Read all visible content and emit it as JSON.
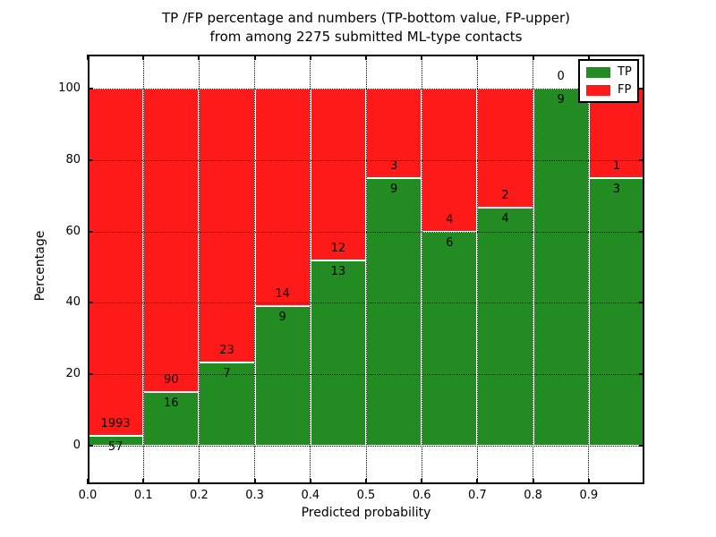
{
  "figure": {
    "title_line1": "TP /FP percentage and numbers (TP-bottom value, FP-upper)",
    "title_line2": "from among 2275 submitted ML-type contacts"
  },
  "chart_data": {
    "type": "bar",
    "subtype": "stacked-percentage",
    "title": "TP /FP percentage and numbers (TP-bottom value, FP-upper) from among 2275 submitted ML-type contacts",
    "xlabel": "Predicted probability",
    "ylabel": "Percentage",
    "total_contacts": 2275,
    "x_tick_labels": [
      "0.0",
      "0.1",
      "0.2",
      "0.3",
      "0.4",
      "0.5",
      "0.6",
      "0.7",
      "0.8",
      "0.9"
    ],
    "y_ticks": [
      0,
      20,
      40,
      60,
      80,
      100
    ],
    "y_tick_labels": [
      "0",
      "20",
      "40",
      "60",
      "80",
      "100"
    ],
    "xlim": [
      0.0,
      1.0
    ],
    "ylim": [
      -10.8,
      109.8
    ],
    "grid": "dotted-both-axes",
    "annotation_convention": "TP count below segment boundary, FP count above it",
    "legend": {
      "position": "upper-right",
      "entries": [
        {
          "label": "TP",
          "color": "#228b22"
        },
        {
          "label": "FP",
          "color": "#ff1a1a"
        }
      ]
    },
    "bins": [
      {
        "x_start": 0.0,
        "x_end": 0.1,
        "tp": 57,
        "fp": 1993,
        "tp_pct": 2.78
      },
      {
        "x_start": 0.1,
        "x_end": 0.2,
        "tp": 16,
        "fp": 90,
        "tp_pct": 15.09
      },
      {
        "x_start": 0.2,
        "x_end": 0.3,
        "tp": 7,
        "fp": 23,
        "tp_pct": 23.33
      },
      {
        "x_start": 0.3,
        "x_end": 0.4,
        "tp": 9,
        "fp": 14,
        "tp_pct": 39.13
      },
      {
        "x_start": 0.4,
        "x_end": 0.5,
        "tp": 13,
        "fp": 12,
        "tp_pct": 52.0
      },
      {
        "x_start": 0.5,
        "x_end": 0.6,
        "tp": 9,
        "fp": 3,
        "tp_pct": 75.0
      },
      {
        "x_start": 0.6,
        "x_end": 0.7,
        "tp": 6,
        "fp": 4,
        "tp_pct": 60.0
      },
      {
        "x_start": 0.7,
        "x_end": 0.8,
        "tp": 4,
        "fp": 2,
        "tp_pct": 66.67
      },
      {
        "x_start": 0.8,
        "x_end": 0.9,
        "tp": 9,
        "fp": 0,
        "tp_pct": 100.0
      },
      {
        "x_start": 0.9,
        "x_end": 1.0,
        "tp": 3,
        "fp": 1,
        "tp_pct": 75.0
      }
    ],
    "colors": {
      "tp": "#228b22",
      "fp": "#ff1a1a",
      "bar_edge": "#ffffff",
      "grid": "#000000",
      "background": "#ffffff"
    }
  }
}
